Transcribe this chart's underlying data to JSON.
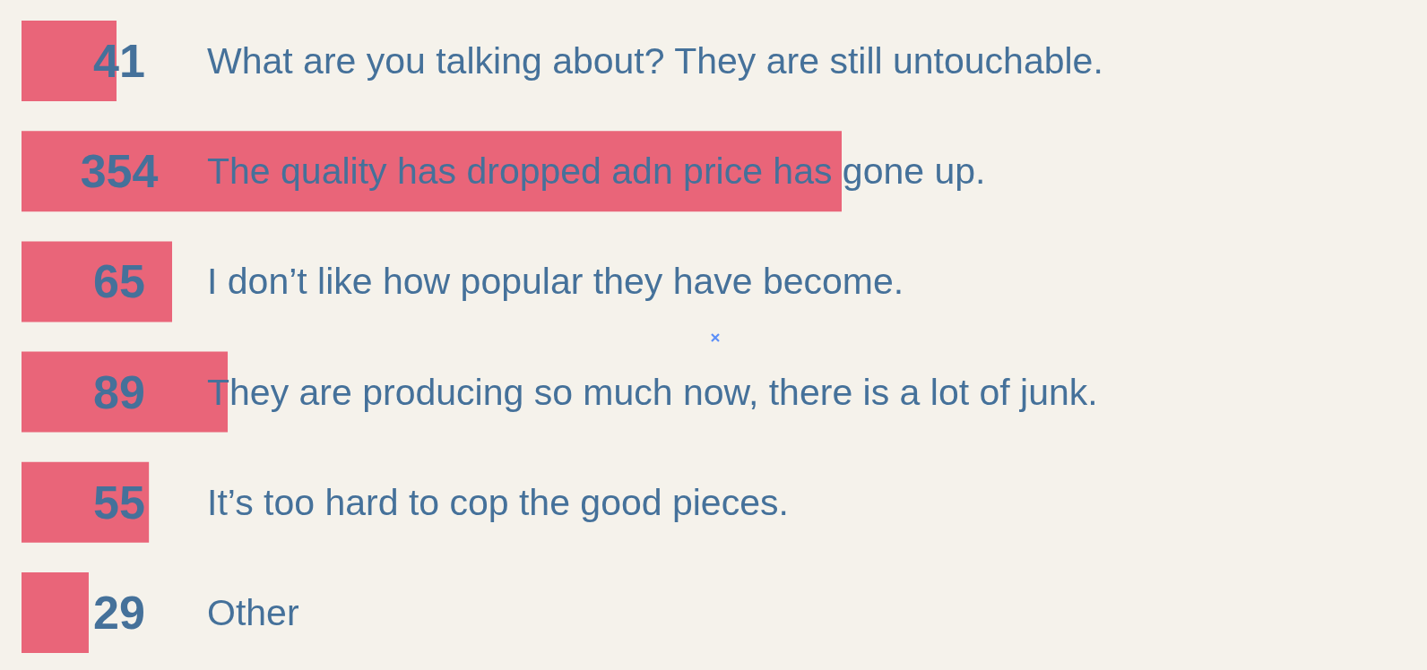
{
  "chart_data": {
    "type": "bar",
    "orientation": "horizontal",
    "categories": [
      "What are you talking about? They are still untouchable.",
      "The quality has dropped adn price has gone up.",
      "I don’t like how popular they have become.",
      "They are producing so much now, there is a lot of junk.",
      "It’s too hard to cop the good pieces.",
      "Other"
    ],
    "values": [
      41,
      354,
      65,
      89,
      55,
      29
    ],
    "color": "#e96579",
    "data_labels": true,
    "tick_labels": "y"
  }
}
